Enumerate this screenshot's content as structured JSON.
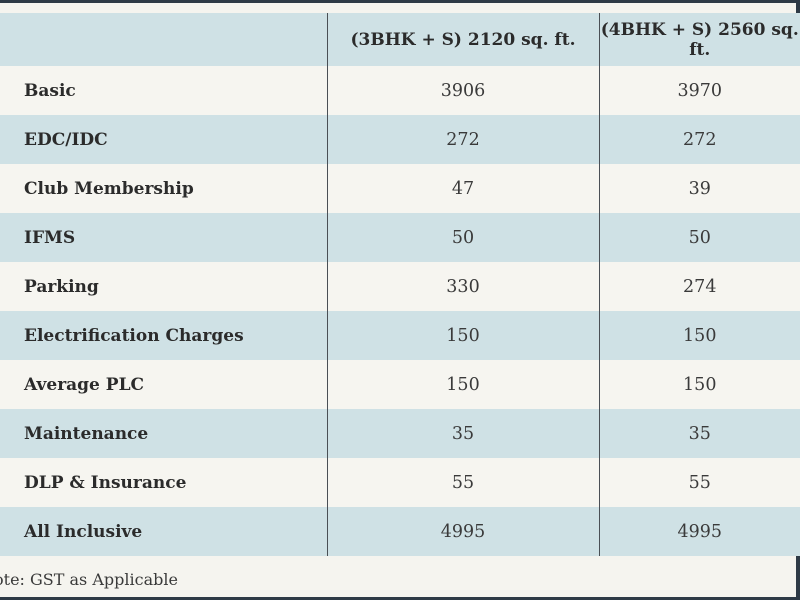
{
  "table": {
    "headers": [
      "",
      "(3BHK + S) 2120 sq. ft.",
      "(4BHK + S) 2560 sq. ft."
    ],
    "rows": [
      {
        "label": "Basic",
        "values": [
          "3906",
          "3970"
        ]
      },
      {
        "label": "EDC/IDC",
        "values": [
          "272",
          "272"
        ]
      },
      {
        "label": "Club Membership",
        "values": [
          "47",
          "39"
        ]
      },
      {
        "label": "IFMS",
        "values": [
          "50",
          "50"
        ]
      },
      {
        "label": "Parking",
        "values": [
          "330",
          "274"
        ]
      },
      {
        "label": "Electrification Charges",
        "values": [
          "150",
          "150"
        ]
      },
      {
        "label": "Average PLC",
        "values": [
          "150",
          "150"
        ]
      },
      {
        "label": "Maintenance",
        "values": [
          "35",
          "35"
        ]
      },
      {
        "label": "DLP & Insurance",
        "values": [
          "55",
          "55"
        ]
      },
      {
        "label": "All Inclusive",
        "values": [
          "4995",
          "4995"
        ]
      }
    ]
  },
  "note": "ote: GST as Applicable",
  "colors": {
    "row_alt": "#cfe1e5",
    "row_plain": "#f6f5f0",
    "frame": "#2e3a46"
  }
}
